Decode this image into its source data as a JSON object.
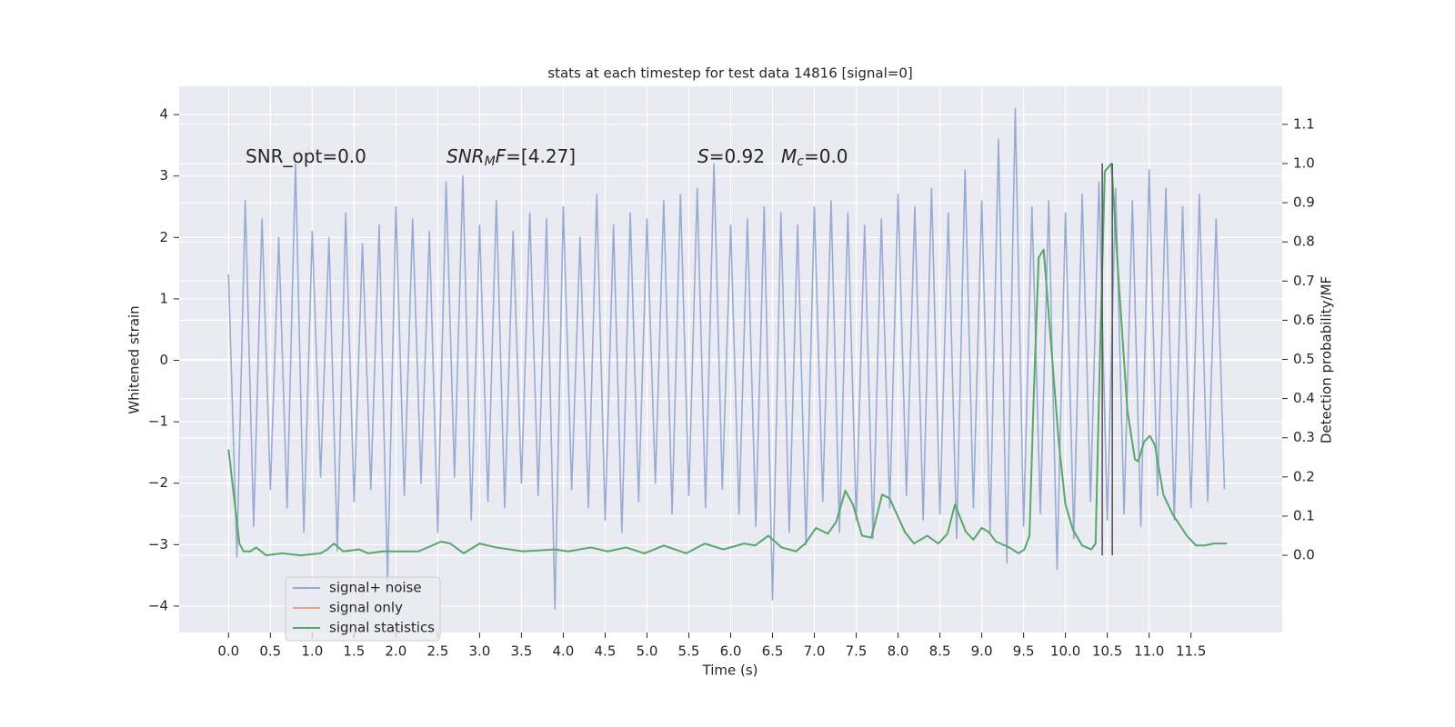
{
  "chart_data": {
    "type": "line",
    "title": "stats at each timestep for test data 14816 [signal=0]",
    "xlabel": "Time (s)",
    "ylabel": "Whitened strain",
    "y2label": "Detection probability/MF",
    "xlim": [
      -0.59,
      12.59
    ],
    "ylim": [
      -4.43,
      4.46
    ],
    "y2lim": [
      -0.197,
      1.197
    ],
    "xticks": [
      {
        "value": 0,
        "label": "0.0"
      },
      0.5,
      {
        "value": 1,
        "label": "1.0"
      },
      1.5,
      {
        "value": 2,
        "label": "2.0"
      },
      2.5,
      {
        "value": 3,
        "label": "3.0"
      },
      3.5,
      {
        "value": 4,
        "label": "4.0"
      },
      4.5,
      {
        "value": 5,
        "label": "5.0"
      },
      5.5,
      {
        "value": 6,
        "label": "6.0"
      },
      6.5,
      {
        "value": 7,
        "label": "7.0"
      },
      7.5,
      {
        "value": 8,
        "label": "8.0"
      },
      8.5,
      {
        "value": 9,
        "label": "9.0"
      },
      9.5,
      {
        "value": 10,
        "label": "10.0"
      },
      10.5,
      {
        "value": 11,
        "label": "11.0"
      },
      11.5
    ],
    "yticks": [
      {
        "value": -4,
        "label": "−4"
      },
      {
        "value": -3,
        "label": "−3"
      },
      {
        "value": -2,
        "label": "−2"
      },
      {
        "value": -1,
        "label": "−1"
      },
      0,
      1,
      2,
      3,
      4
    ],
    "y2ticks": [
      {
        "value": 0,
        "label": "0.0"
      },
      0.1,
      0.2,
      0.3,
      0.4,
      0.5,
      0.6,
      0.7,
      0.8,
      0.9,
      {
        "value": 1,
        "label": "1.0"
      },
      1.1
    ],
    "grid": true,
    "legend": "lower left",
    "annotations": [
      {
        "parts": [
          {
            "text": "SNR_opt=0.0"
          }
        ]
      },
      {
        "parts": [
          {
            "text": "SNR",
            "style": "italic"
          },
          {
            "text": "M",
            "style": "sub"
          },
          {
            "text": "F",
            "style": "italic"
          },
          {
            "text": "=[4.27]"
          }
        ]
      },
      {
        "parts": [
          {
            "text": "S",
            "style": "italic"
          },
          {
            "text": "=0.92"
          }
        ]
      },
      {
        "parts": [
          {
            "text": "M",
            "style": "italic"
          },
          {
            "text": "c",
            "style": "sub"
          },
          {
            "text": "=0.0"
          }
        ]
      }
    ],
    "series": [
      {
        "name": "signal+ noise",
        "color": "#9aabd1",
        "x": [
          0.0,
          0.1,
          0.2,
          0.3,
          0.4,
          0.5,
          0.6,
          0.7,
          0.8,
          0.9,
          1.0,
          1.1,
          1.2,
          1.3,
          1.4,
          1.5,
          1.6,
          1.7,
          1.8,
          1.9,
          2.0,
          2.1,
          2.2,
          2.3,
          2.4,
          2.5,
          2.6,
          2.7,
          2.8,
          2.9,
          3.0,
          3.1,
          3.2,
          3.3,
          3.4,
          3.5,
          3.6,
          3.7,
          3.8,
          3.9,
          4.0,
          4.1,
          4.2,
          4.3,
          4.4,
          4.5,
          4.6,
          4.7,
          4.8,
          4.9,
          5.0,
          5.1,
          5.2,
          5.3,
          5.4,
          5.5,
          5.6,
          5.7,
          5.8,
          5.9,
          6.0,
          6.1,
          6.2,
          6.3,
          6.4,
          6.5,
          6.6,
          6.7,
          6.8,
          6.9,
          7.0,
          7.1,
          7.2,
          7.3,
          7.4,
          7.5,
          7.6,
          7.7,
          7.8,
          7.9,
          8.0,
          8.1,
          8.2,
          8.3,
          8.4,
          8.5,
          8.6,
          8.7,
          8.8,
          8.9,
          9.0,
          9.1,
          9.2,
          9.3,
          9.4,
          9.5,
          9.6,
          9.7,
          9.8,
          9.9,
          10.0,
          10.1,
          10.2,
          10.3,
          10.4,
          10.5,
          10.6,
          10.7,
          10.8,
          10.9,
          11.0,
          11.1,
          11.2,
          11.3,
          11.4,
          11.5,
          11.6,
          11.7,
          11.8,
          11.9
        ],
        "values": [
          1.4,
          -3.2,
          2.6,
          -2.7,
          2.3,
          -2.1,
          2.0,
          -2.4,
          3.2,
          -2.8,
          2.1,
          -1.9,
          2.0,
          -3.1,
          2.4,
          -2.3,
          1.9,
          -2.1,
          2.2,
          -3.6,
          2.5,
          -2.2,
          2.3,
          -2.0,
          2.1,
          -2.8,
          2.9,
          -1.9,
          3.0,
          -2.6,
          2.2,
          -2.3,
          2.6,
          -2.4,
          2.1,
          -2.0,
          2.4,
          -2.2,
          2.3,
          -4.05,
          2.5,
          -2.1,
          2.0,
          -2.4,
          2.7,
          -2.6,
          2.2,
          -2.8,
          2.4,
          -2.3,
          2.3,
          -2.0,
          2.6,
          -2.5,
          2.7,
          -2.2,
          2.8,
          -2.4,
          3.2,
          -2.1,
          2.2,
          -2.5,
          2.3,
          -2.7,
          2.5,
          -3.9,
          2.4,
          -2.8,
          2.2,
          -3.0,
          2.5,
          -2.3,
          2.6,
          -2.8,
          2.4,
          -2.6,
          2.2,
          -2.9,
          2.3,
          -2.4,
          2.7,
          -2.2,
          2.5,
          -2.6,
          2.8,
          -2.5,
          2.4,
          -2.9,
          3.1,
          -2.4,
          2.6,
          -2.8,
          3.6,
          -3.3,
          4.1,
          -2.7,
          2.5,
          -2.5,
          2.6,
          -3.4,
          2.4,
          -2.9,
          2.7,
          -2.3,
          2.9,
          -2.6,
          2.8,
          -2.5,
          2.6,
          -2.7,
          3.1,
          -2.2,
          2.8,
          -2.6,
          2.5,
          -2.4,
          2.7,
          -2.3,
          2.3,
          -2.1
        ]
      },
      {
        "name": "signal only",
        "color": "#e5a387",
        "x": [],
        "values": []
      },
      {
        "name": "signal statistics",
        "color": "#55a868",
        "axis": "y2",
        "x": [
          0,
          0.13,
          0.18,
          0.26,
          0.33,
          0.45,
          0.64,
          0.86,
          1.1,
          1.18,
          1.26,
          1.37,
          1.56,
          1.67,
          1.84,
          2.27,
          2.54,
          2.65,
          2.81,
          3.0,
          3.2,
          3.52,
          3.9,
          4.06,
          4.33,
          4.53,
          4.75,
          4.97,
          5.2,
          5.47,
          5.69,
          5.91,
          6.16,
          6.29,
          6.45,
          6.61,
          6.78,
          6.89,
          7.02,
          7.16,
          7.26,
          7.37,
          7.46,
          7.57,
          7.68,
          7.81,
          7.9,
          8.08,
          8.19,
          8.35,
          8.48,
          8.59,
          8.68,
          8.81,
          8.9,
          9.0,
          9.08,
          9.17,
          9.33,
          9.44,
          9.51,
          9.57,
          9.62,
          9.68,
          9.74,
          9.82,
          9.92,
          10.0,
          10.09,
          10.2,
          10.31,
          10.36,
          10.41,
          10.47,
          10.55,
          10.63,
          10.74,
          10.83,
          10.87,
          10.94,
          11.01,
          11.07,
          11.17,
          11.28,
          11.45,
          11.56,
          11.66,
          11.77,
          11.93
        ],
        "values": [
          0.27,
          0.03,
          0.01,
          0.01,
          0.02,
          0.0,
          0.005,
          0.0,
          0.005,
          0.015,
          0.03,
          0.01,
          0.015,
          0.005,
          0.01,
          0.01,
          0.035,
          0.03,
          0.005,
          0.03,
          0.02,
          0.01,
          0.015,
          0.01,
          0.02,
          0.01,
          0.02,
          0.005,
          0.025,
          0.005,
          0.03,
          0.015,
          0.03,
          0.025,
          0.05,
          0.02,
          0.01,
          0.03,
          0.07,
          0.055,
          0.085,
          0.165,
          0.13,
          0.05,
          0.045,
          0.155,
          0.145,
          0.06,
          0.03,
          0.05,
          0.03,
          0.055,
          0.13,
          0.06,
          0.04,
          0.07,
          0.06,
          0.035,
          0.02,
          0.005,
          0.015,
          0.05,
          0.4,
          0.76,
          0.78,
          0.56,
          0.29,
          0.13,
          0.065,
          0.025,
          0.015,
          0.03,
          0.49,
          0.98,
          1.0,
          0.72,
          0.37,
          0.245,
          0.24,
          0.29,
          0.305,
          0.28,
          0.155,
          0.105,
          0.05,
          0.025,
          0.025,
          0.03,
          0.03
        ]
      }
    ],
    "vlines": {
      "x": [
        10.44,
        10.56
      ],
      "ymin": 0,
      "ymax": 1,
      "color": "#555555",
      "axis": "y2"
    }
  }
}
